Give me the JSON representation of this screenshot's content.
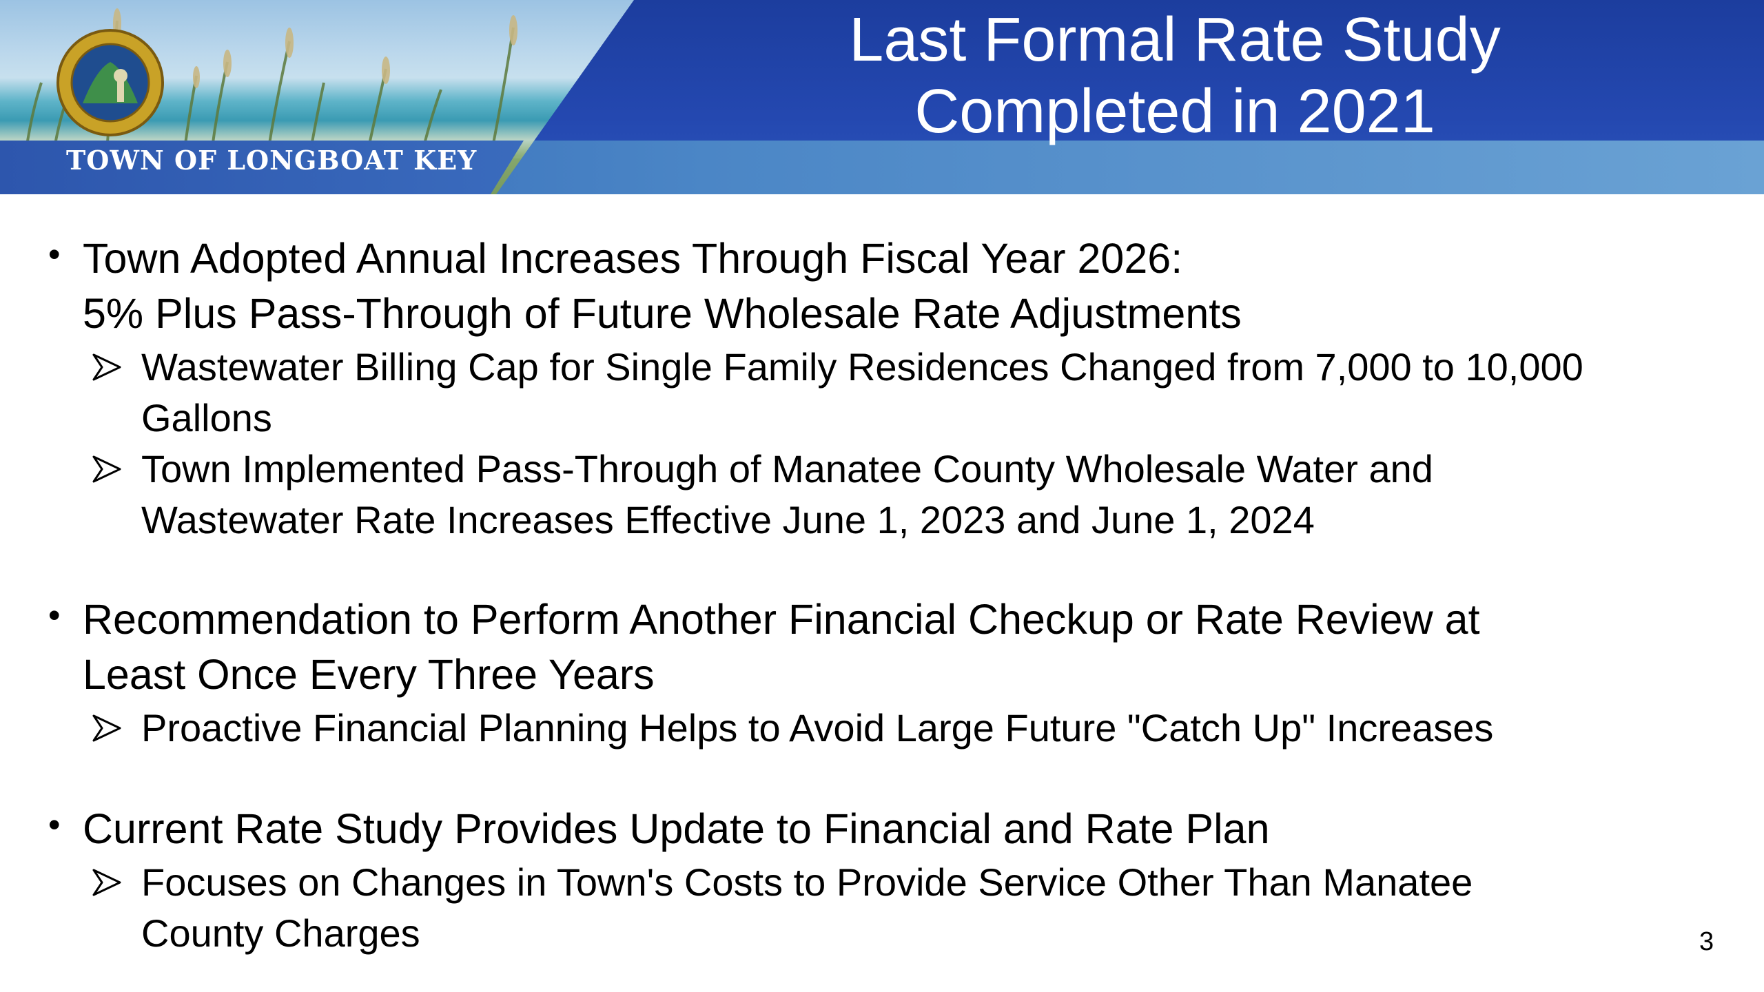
{
  "header": {
    "title_line1": "Last Formal Rate Study",
    "title_line2": "Completed in 2021",
    "town_name": "TOWN OF LONGBOAT KEY",
    "seal_icon": "town-seal-icon",
    "colors": {
      "banner": "#2448b0",
      "strip": "#4b86c6",
      "text": "#ffffff"
    }
  },
  "bullets": [
    {
      "lines": [
        "Town Adopted Annual Increases Through Fiscal Year 2026:",
        "5% Plus Pass-Through of Future Wholesale Rate Adjustments"
      ],
      "subs": [
        {
          "lines": [
            "Wastewater Billing Cap for Single Family Residences Changed from 7,000 to 10,000",
            "Gallons"
          ]
        },
        {
          "lines": [
            "Town Implemented Pass-Through of Manatee County Wholesale Water and",
            "Wastewater Rate Increases Effective June 1, 2023 and June 1, 2024"
          ]
        }
      ]
    },
    {
      "lines": [
        "Recommendation to Perform Another Financial Checkup or Rate Review at",
        "Least Once Every Three Years"
      ],
      "subs": [
        {
          "lines": [
            "Proactive Financial Planning Helps to Avoid Large Future \"Catch Up\" Increases"
          ]
        }
      ]
    },
    {
      "lines": [
        "Current Rate Study Provides Update to Financial and Rate Plan"
      ],
      "subs": [
        {
          "lines": [
            "Focuses on Changes in Town's Costs to Provide Service Other Than Manatee",
            "County Charges"
          ]
        }
      ]
    }
  ],
  "bullet_glyph": "•",
  "sub_bullet_icon": "arrowhead-bullet-icon",
  "page_number": "3"
}
